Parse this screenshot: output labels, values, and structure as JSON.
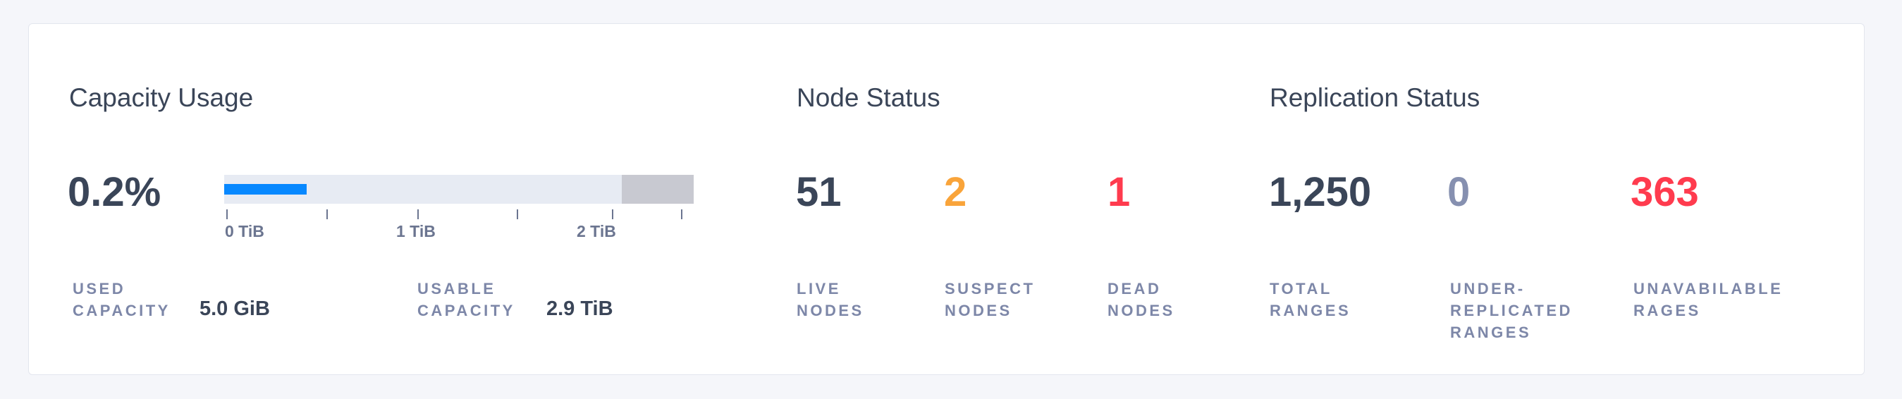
{
  "capacity": {
    "title": "Capacity Usage",
    "percent": "0.2%",
    "bar": {
      "used_fill_fraction": 0.175,
      "usable_fraction": 0.847,
      "used_color": "#0788ff",
      "track_color": "#e7ebf3",
      "unusable_color": "#c8c9d1"
    },
    "ticks": [
      "0 TiB",
      "1 TiB",
      "2 TiB"
    ],
    "used_label": [
      "USED",
      "CAPACITY"
    ],
    "used_value": "5.0 GiB",
    "usable_label": [
      "USABLE",
      "CAPACITY"
    ],
    "usable_value": "2.9 TiB"
  },
  "nodes": {
    "title": "Node Status",
    "live": {
      "value": "51",
      "label": [
        "LIVE",
        "NODES"
      ],
      "color": "#3a4558"
    },
    "suspect": {
      "value": "2",
      "label": [
        "SUSPECT",
        "NODES"
      ],
      "color": "#f9a43a"
    },
    "dead": {
      "value": "1",
      "label": [
        "DEAD",
        "NODES"
      ],
      "color": "#ff3b4e"
    }
  },
  "replication": {
    "title": "Replication Status",
    "total": {
      "value": "1,250",
      "label": [
        "TOTAL",
        "RANGES"
      ],
      "color": "#3a4558"
    },
    "under": {
      "value": "0",
      "label": [
        "UNDER-",
        "REPLICATED",
        "RANGES"
      ],
      "color": "#8690b0"
    },
    "unavailable": {
      "value": "363",
      "label": [
        "UNAVABILABLE",
        "RAGES"
      ],
      "color": "#ff3b4e"
    }
  }
}
